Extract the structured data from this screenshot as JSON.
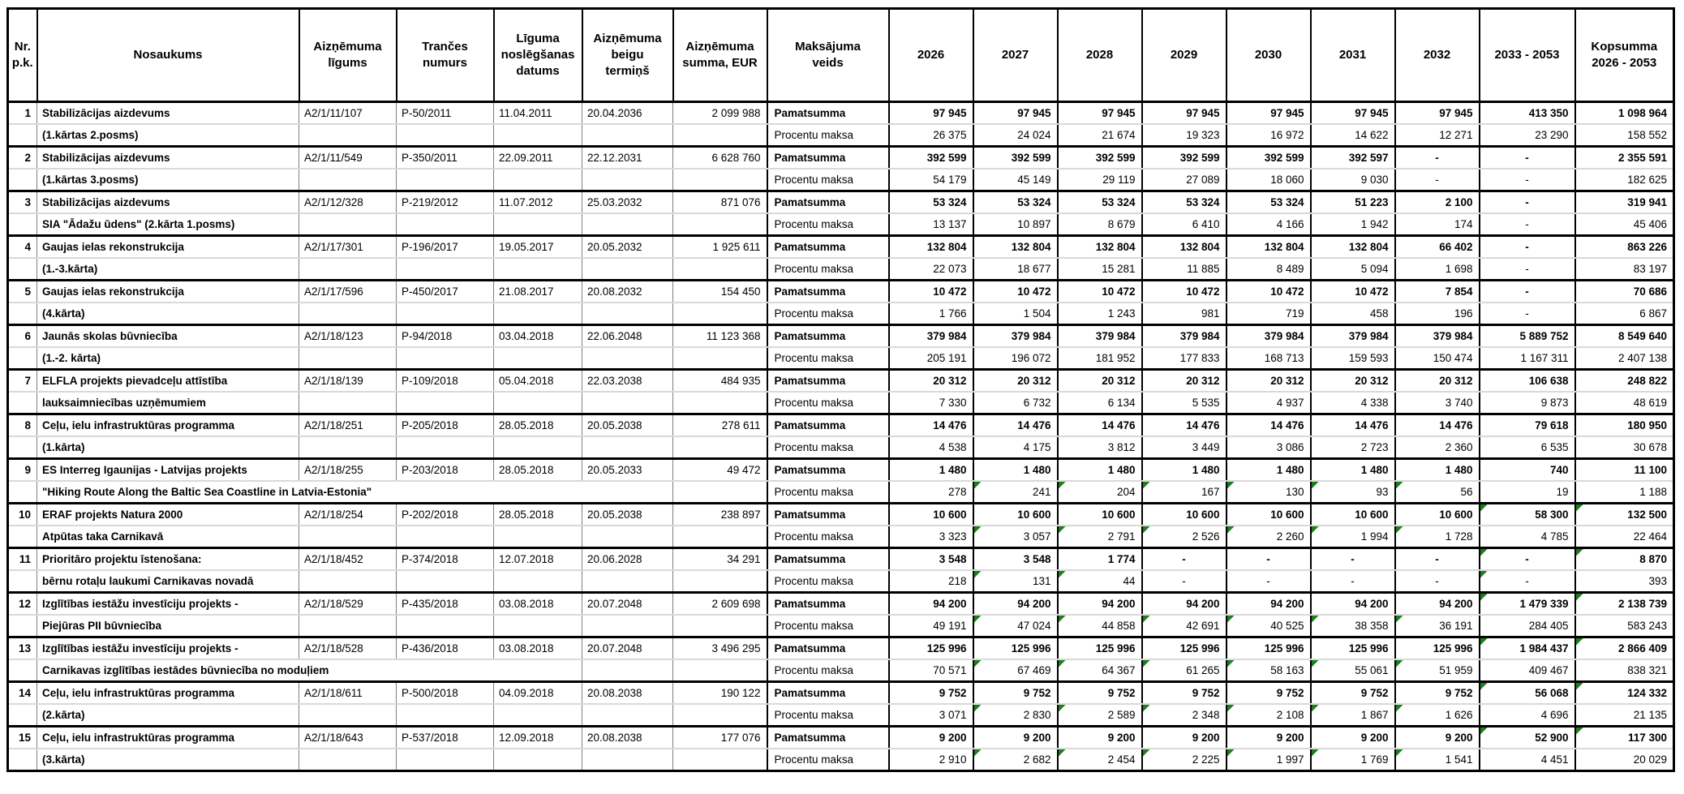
{
  "style": {
    "flag_color": "#1e7d1e"
  },
  "table": {
    "columns": [
      {
        "id": "nr",
        "label": "Nr.\np.k."
      },
      {
        "id": "name",
        "label": "Nosaukums"
      },
      {
        "id": "ligums",
        "label": "Aizņēmuma\nlīgums"
      },
      {
        "id": "trance",
        "label": "Trančes\nnumurs"
      },
      {
        "id": "datums",
        "label": "Līguma\nnoslēgšanas\ndatums"
      },
      {
        "id": "termins",
        "label": "Aizņēmuma\nbeigu\ntermiņš"
      },
      {
        "id": "summa",
        "label": "Aizņēmuma\nsumma, EUR"
      },
      {
        "id": "veids",
        "label": "Maksājuma\nveids"
      },
      {
        "id": "y2026",
        "label": "2026"
      },
      {
        "id": "y2027",
        "label": "2027"
      },
      {
        "id": "y2028",
        "label": "2028"
      },
      {
        "id": "y2029",
        "label": "2029"
      },
      {
        "id": "y2030",
        "label": "2030"
      },
      {
        "id": "y2031",
        "label": "2031"
      },
      {
        "id": "y2032",
        "label": "2032"
      },
      {
        "id": "period",
        "label": "2033 - 2053"
      },
      {
        "id": "kopsumma",
        "label": "Kopsumma\n2026 - 2053"
      }
    ],
    "payment_labels": [
      "Pamatsumma",
      "Procentu maksa"
    ],
    "rows": [
      {
        "nr": "1",
        "name1": "Stabilizācijas aizdevums",
        "name2": "(1.kārtas 2.posms)",
        "name2_colspan": 1,
        "ligums": "A2/1/11/107",
        "trance": "P-50/2011",
        "datums": "11.04.2011",
        "termins": "20.04.2036",
        "summa": "2 099 988",
        "pamatsumma": [
          "97 945",
          "97 945",
          "97 945",
          "97 945",
          "97 945",
          "97 945",
          "97 945",
          "413 350",
          "1 098 964"
        ],
        "pamatsumma_flags": [
          0,
          0,
          0,
          0,
          0,
          0,
          0,
          0,
          0
        ],
        "procentu": [
          "26 375",
          "24 024",
          "21 674",
          "19 323",
          "16 972",
          "14 622",
          "12 271",
          "23 290",
          "158 552"
        ],
        "procentu_flags": [
          0,
          0,
          0,
          0,
          0,
          0,
          0,
          0,
          0
        ]
      },
      {
        "nr": "2",
        "name1": "Stabilizācijas aizdevums",
        "name2": "(1.kārtas 3.posms)",
        "name2_colspan": 1,
        "ligums": "A2/1/11/549",
        "trance": "P-350/2011",
        "datums": "22.09.2011",
        "termins": "22.12.2031",
        "summa": "6 628 760",
        "pamatsumma": [
          "392 599",
          "392 599",
          "392 599",
          "392 599",
          "392 599",
          "392 597",
          "-",
          "-",
          "2 355 591"
        ],
        "pamatsumma_flags": [
          0,
          0,
          0,
          0,
          0,
          0,
          0,
          0,
          0
        ],
        "procentu": [
          "54 179",
          "45 149",
          "29 119",
          "27 089",
          "18 060",
          "9 030",
          "-",
          "-",
          "182 625"
        ],
        "procentu_flags": [
          0,
          0,
          0,
          0,
          0,
          0,
          0,
          0,
          0
        ]
      },
      {
        "nr": "3",
        "name1": "Stabilizācijas aizdevums",
        "name2": "SIA \"Ādažu ūdens\" (2.kārta 1.posms)",
        "name2_colspan": 1,
        "ligums": "A2/1/12/328",
        "trance": "P-219/2012",
        "datums": "11.07.2012",
        "termins": "25.03.2032",
        "summa": "871 076",
        "pamatsumma": [
          "53 324",
          "53 324",
          "53 324",
          "53 324",
          "53 324",
          "51 223",
          "2 100",
          "-",
          "319 941"
        ],
        "pamatsumma_flags": [
          0,
          0,
          0,
          0,
          0,
          0,
          0,
          0,
          0
        ],
        "procentu": [
          "13 137",
          "10 897",
          "8 679",
          "6 410",
          "4 166",
          "1 942",
          "174",
          "-",
          "45 406"
        ],
        "procentu_flags": [
          0,
          0,
          0,
          0,
          0,
          0,
          0,
          0,
          0
        ]
      },
      {
        "nr": "4",
        "name1": "Gaujas ielas rekonstrukcija",
        "name2": "(1.-3.kārta)",
        "name2_colspan": 1,
        "ligums": "A2/1/17/301",
        "trance": "P-196/2017",
        "datums": "19.05.2017",
        "termins": "20.05.2032",
        "summa": "1 925 611",
        "pamatsumma": [
          "132 804",
          "132 804",
          "132 804",
          "132 804",
          "132 804",
          "132 804",
          "66 402",
          "-",
          "863 226"
        ],
        "pamatsumma_flags": [
          0,
          0,
          0,
          0,
          0,
          0,
          0,
          0,
          0
        ],
        "procentu": [
          "22 073",
          "18 677",
          "15 281",
          "11 885",
          "8 489",
          "5 094",
          "1 698",
          "-",
          "83 197"
        ],
        "procentu_flags": [
          0,
          0,
          0,
          0,
          0,
          0,
          0,
          0,
          0
        ]
      },
      {
        "nr": "5",
        "name1": "Gaujas ielas rekonstrukcija",
        "name2": "(4.kārta)",
        "name2_colspan": 1,
        "ligums": "A2/1/17/596",
        "trance": "P-450/2017",
        "datums": "21.08.2017",
        "termins": "20.08.2032",
        "summa": "154 450",
        "pamatsumma": [
          "10 472",
          "10 472",
          "10 472",
          "10 472",
          "10 472",
          "10 472",
          "7 854",
          "-",
          "70 686"
        ],
        "pamatsumma_flags": [
          0,
          0,
          0,
          0,
          0,
          0,
          0,
          0,
          0
        ],
        "procentu": [
          "1 766",
          "1 504",
          "1 243",
          "981",
          "719",
          "458",
          "196",
          "-",
          "6 867"
        ],
        "procentu_flags": [
          0,
          0,
          0,
          0,
          0,
          0,
          0,
          0,
          0
        ]
      },
      {
        "nr": "6",
        "name1": "Jaunās skolas būvniecība",
        "name2": "(1.-2. kārta)",
        "name2_colspan": 1,
        "ligums": "A2/1/18/123",
        "trance": "P-94/2018",
        "datums": "03.04.2018",
        "termins": "22.06.2048",
        "summa": "11 123 368",
        "pamatsumma": [
          "379 984",
          "379 984",
          "379 984",
          "379 984",
          "379 984",
          "379 984",
          "379 984",
          "5 889 752",
          "8 549 640"
        ],
        "pamatsumma_flags": [
          0,
          0,
          0,
          0,
          0,
          0,
          0,
          0,
          0
        ],
        "procentu": [
          "205 191",
          "196 072",
          "181 952",
          "177 833",
          "168 713",
          "159 593",
          "150 474",
          "1 167 311",
          "2 407 138"
        ],
        "procentu_flags": [
          0,
          0,
          0,
          0,
          0,
          0,
          0,
          0,
          0
        ]
      },
      {
        "nr": "7",
        "name1": "ELFLA projekts pievadceļu attīstība",
        "name2": "lauksaimniecības uzņēmumiem",
        "name2_colspan": 1,
        "ligums": "A2/1/18/139",
        "trance": "P-109/2018",
        "datums": "05.04.2018",
        "termins": "22.03.2038",
        "summa": "484 935",
        "pamatsumma": [
          "20 312",
          "20 312",
          "20 312",
          "20 312",
          "20 312",
          "20 312",
          "20 312",
          "106 638",
          "248 822"
        ],
        "pamatsumma_flags": [
          0,
          0,
          0,
          0,
          0,
          0,
          0,
          0,
          0
        ],
        "procentu": [
          "7 330",
          "6 732",
          "6 134",
          "5 535",
          "4 937",
          "4 338",
          "3 740",
          "9 873",
          "48 619"
        ],
        "procentu_flags": [
          0,
          0,
          0,
          0,
          0,
          0,
          0,
          0,
          0
        ]
      },
      {
        "nr": "8",
        "name1": "Ceļu, ielu infrastruktūras programma",
        "name2": "(1.kārta)",
        "name2_colspan": 1,
        "ligums": "A2/1/18/251",
        "trance": "P-205/2018",
        "datums": "28.05.2018",
        "termins": "20.05.2038",
        "summa": "278 611",
        "pamatsumma": [
          "14 476",
          "14 476",
          "14 476",
          "14 476",
          "14 476",
          "14 476",
          "14 476",
          "79 618",
          "180 950"
        ],
        "pamatsumma_flags": [
          0,
          0,
          0,
          0,
          0,
          0,
          0,
          0,
          0
        ],
        "procentu": [
          "4 538",
          "4 175",
          "3 812",
          "3 449",
          "3 086",
          "2 723",
          "2 360",
          "6 535",
          "30 678"
        ],
        "procentu_flags": [
          0,
          0,
          0,
          0,
          0,
          0,
          0,
          0,
          0
        ]
      },
      {
        "nr": "9",
        "name1": "ES Interreg Igaunijas - Latvijas projekts",
        "name2": "\"Hiking Route Along the Baltic Sea Coastline in Latvia-Estonia\"",
        "name2_colspan": 5,
        "ligums": "A2/1/18/255",
        "trance": "P-203/2018",
        "datums": "28.05.2018",
        "termins": "20.05.2033",
        "summa": "49 472",
        "pamatsumma": [
          "1 480",
          "1 480",
          "1 480",
          "1 480",
          "1 480",
          "1 480",
          "1 480",
          "740",
          "11 100"
        ],
        "pamatsumma_flags": [
          0,
          0,
          0,
          0,
          0,
          0,
          0,
          0,
          0
        ],
        "procentu": [
          "278",
          "241",
          "204",
          "167",
          "130",
          "93",
          "56",
          "19",
          "1 188"
        ],
        "procentu_flags": [
          0,
          1,
          1,
          1,
          1,
          1,
          1,
          0,
          0
        ]
      },
      {
        "nr": "10",
        "name1": "ERAF projekts Natura 2000",
        "name2": "Atpūtas taka Carnikavā",
        "name2_colspan": 1,
        "ligums": "A2/1/18/254",
        "trance": "P-202/2018",
        "datums": "28.05.2018",
        "termins": "20.05.2038",
        "summa": "238 897",
        "pamatsumma": [
          "10 600",
          "10 600",
          "10 600",
          "10 600",
          "10 600",
          "10 600",
          "10 600",
          "58 300",
          "132 500"
        ],
        "pamatsumma_flags": [
          0,
          0,
          0,
          0,
          0,
          0,
          0,
          1,
          1
        ],
        "procentu": [
          "3 323",
          "3 057",
          "2 791",
          "2 526",
          "2 260",
          "1 994",
          "1 728",
          "4 785",
          "22 464"
        ],
        "procentu_flags": [
          0,
          1,
          1,
          1,
          1,
          1,
          1,
          0,
          0
        ]
      },
      {
        "nr": "11",
        "name1": "Prioritāro projektu īstenošana:",
        "name2": "bērnu rotaļu laukumi Carnikavas novadā",
        "name2_colspan": 1,
        "ligums": "A2/1/18/452",
        "trance": "P-374/2018",
        "datums": "12.07.2018",
        "termins": "20.06.2028",
        "summa": "34 291",
        "pamatsumma": [
          "3 548",
          "3 548",
          "1 774",
          "-",
          "-",
          "-",
          "-",
          "-",
          "8 870"
        ],
        "pamatsumma_flags": [
          0,
          0,
          0,
          0,
          0,
          0,
          0,
          1,
          1
        ],
        "procentu": [
          "218",
          "131",
          "44",
          "-",
          "-",
          "-",
          "-",
          "-",
          "393"
        ],
        "procentu_flags": [
          0,
          1,
          1,
          0,
          0,
          0,
          0,
          1,
          0
        ]
      },
      {
        "nr": "12",
        "name1": "Izglītības iestāžu investīciju projekts -",
        "name2": "Piejūras PII būvniecība",
        "name2_colspan": 1,
        "ligums": "A2/1/18/529",
        "trance": "P-435/2018",
        "datums": "03.08.2018",
        "termins": "20.07.2048",
        "summa": "2 609 698",
        "pamatsumma": [
          "94 200",
          "94 200",
          "94 200",
          "94 200",
          "94 200",
          "94 200",
          "94 200",
          "1 479 339",
          "2 138 739"
        ],
        "pamatsumma_flags": [
          0,
          0,
          0,
          0,
          0,
          0,
          0,
          1,
          1
        ],
        "procentu": [
          "49 191",
          "47 024",
          "44 858",
          "42 691",
          "40 525",
          "38 358",
          "36 191",
          "284 405",
          "583 243"
        ],
        "procentu_flags": [
          0,
          1,
          1,
          1,
          1,
          1,
          1,
          0,
          0
        ]
      },
      {
        "nr": "13",
        "name1": "Izglītības iestāžu investīciju projekts -",
        "name2": "Carnikavas izglītības iestādes būvniecība no moduļiem",
        "name2_colspan": 4,
        "ligums": "A2/1/18/528",
        "trance": "P-436/2018",
        "datums": "03.08.2018",
        "termins": "20.07.2048",
        "summa": "3 496 295",
        "pamatsumma": [
          "125 996",
          "125 996",
          "125 996",
          "125 996",
          "125 996",
          "125 996",
          "125 996",
          "1 984 437",
          "2 866 409"
        ],
        "pamatsumma_flags": [
          0,
          0,
          0,
          0,
          0,
          0,
          0,
          1,
          1
        ],
        "procentu": [
          "70 571",
          "67 469",
          "64 367",
          "61 265",
          "58 163",
          "55 061",
          "51 959",
          "409 467",
          "838 321"
        ],
        "procentu_flags": [
          0,
          1,
          1,
          1,
          1,
          1,
          1,
          0,
          0
        ]
      },
      {
        "nr": "14",
        "name1": "Ceļu, ielu infrastruktūras programma",
        "name2": "(2.kārta)",
        "name2_colspan": 1,
        "ligums": "A2/1/18/611",
        "trance": "P-500/2018",
        "datums": "04.09.2018",
        "termins": "20.08.2038",
        "summa": "190 122",
        "pamatsumma": [
          "9 752",
          "9 752",
          "9 752",
          "9 752",
          "9 752",
          "9 752",
          "9 752",
          "56 068",
          "124 332"
        ],
        "pamatsumma_flags": [
          0,
          0,
          0,
          0,
          0,
          0,
          0,
          1,
          1
        ],
        "procentu": [
          "3 071",
          "2 830",
          "2 589",
          "2 348",
          "2 108",
          "1 867",
          "1 626",
          "4 696",
          "21 135"
        ],
        "procentu_flags": [
          0,
          1,
          1,
          1,
          1,
          1,
          1,
          0,
          0
        ]
      },
      {
        "nr": "15",
        "name1": "Ceļu, ielu infrastruktūras programma",
        "name2": "(3.kārta)",
        "name2_colspan": 1,
        "ligums": "A2/1/18/643",
        "trance": "P-537/2018",
        "datums": "12.09.2018",
        "termins": "20.08.2038",
        "summa": "177 076",
        "pamatsumma": [
          "9 200",
          "9 200",
          "9 200",
          "9 200",
          "9 200",
          "9 200",
          "9 200",
          "52 900",
          "117 300"
        ],
        "pamatsumma_flags": [
          0,
          0,
          0,
          0,
          0,
          0,
          0,
          1,
          1
        ],
        "procentu": [
          "2 910",
          "2 682",
          "2 454",
          "2 225",
          "1 997",
          "1 769",
          "1 541",
          "4 451",
          "20 029"
        ],
        "procentu_flags": [
          0,
          1,
          1,
          1,
          1,
          1,
          1,
          0,
          0
        ]
      }
    ]
  }
}
